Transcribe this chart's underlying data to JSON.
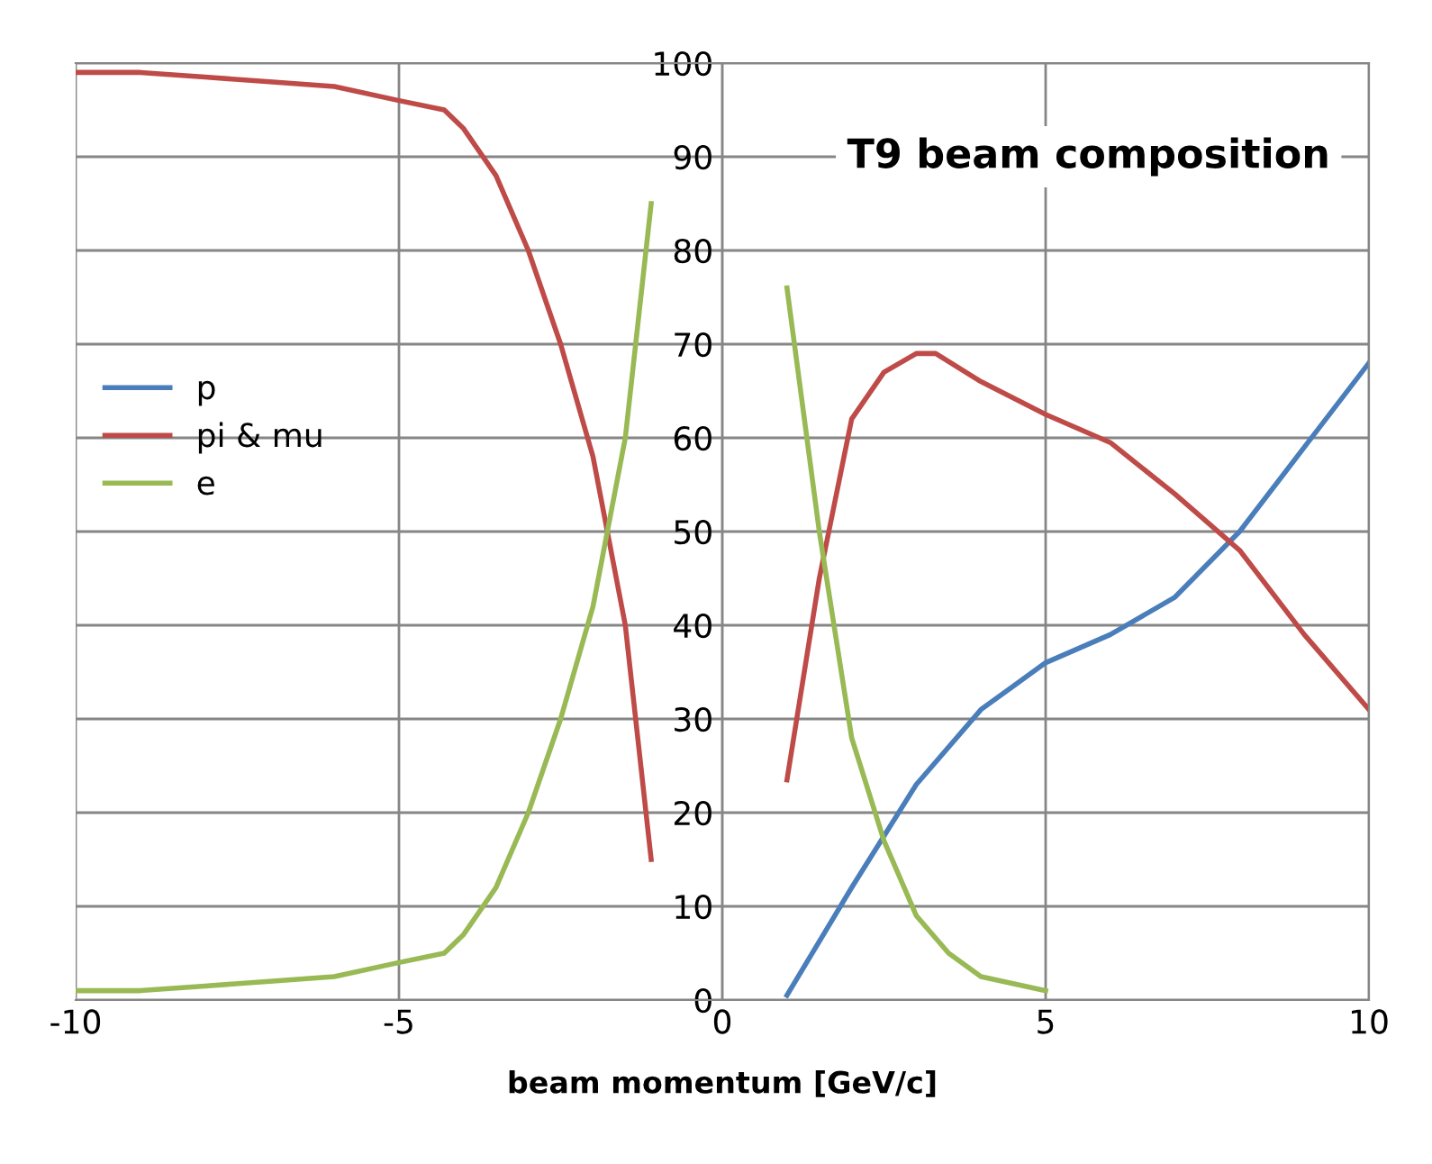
{
  "chart_data": {
    "type": "line",
    "title": "T9 beam composition",
    "xlabel": "beam momentum [GeV/c]",
    "xlim": [
      -10,
      10
    ],
    "xticks": [
      -10,
      -5,
      0,
      5,
      10
    ],
    "ylim": [
      0,
      100
    ],
    "yticks": [
      0,
      10,
      20,
      30,
      40,
      50,
      60,
      70,
      80,
      90,
      100
    ],
    "grid": true,
    "legend": "left",
    "line_style": "solid",
    "marker": "none",
    "series": [
      {
        "name": "p",
        "color": "#4a7ebb",
        "x": [
          1,
          2,
          3,
          4,
          5,
          6,
          7,
          8,
          9,
          10
        ],
        "values": [
          0.5,
          12,
          23,
          31,
          36,
          39,
          43,
          50,
          59,
          68
        ]
      },
      {
        "name": "pi & mu",
        "color": "#be4b48",
        "x": [
          -10,
          -9,
          -8,
          -7,
          -6,
          -5,
          -4.3,
          -4,
          -3.5,
          -3,
          -2.5,
          -2,
          -1.5,
          -1.1,
          0,
          1,
          1.5,
          2,
          2.5,
          3,
          3.3,
          4,
          5,
          6,
          7,
          8,
          9,
          10
        ],
        "values": [
          99,
          99,
          98.5,
          98,
          97.5,
          96,
          95,
          93,
          88,
          80,
          70,
          58,
          40,
          15,
          null,
          23.5,
          45,
          62,
          67,
          69,
          69,
          66,
          62.5,
          59.5,
          54,
          48,
          39,
          31
        ]
      },
      {
        "name": "e",
        "color": "#98b954",
        "x": [
          -10,
          -9,
          -8,
          -7,
          -6,
          -5,
          -4.3,
          -4,
          -3.5,
          -3,
          -2.5,
          -2,
          -1.5,
          -1.1,
          0,
          1,
          1.5,
          2,
          2.5,
          3,
          3.5,
          4,
          5
        ],
        "values": [
          1,
          1,
          1.5,
          2,
          2.5,
          4,
          5,
          7,
          12,
          20,
          30,
          42,
          60,
          85,
          null,
          76,
          50,
          28,
          17,
          9,
          5,
          2.5,
          1
        ]
      }
    ]
  }
}
